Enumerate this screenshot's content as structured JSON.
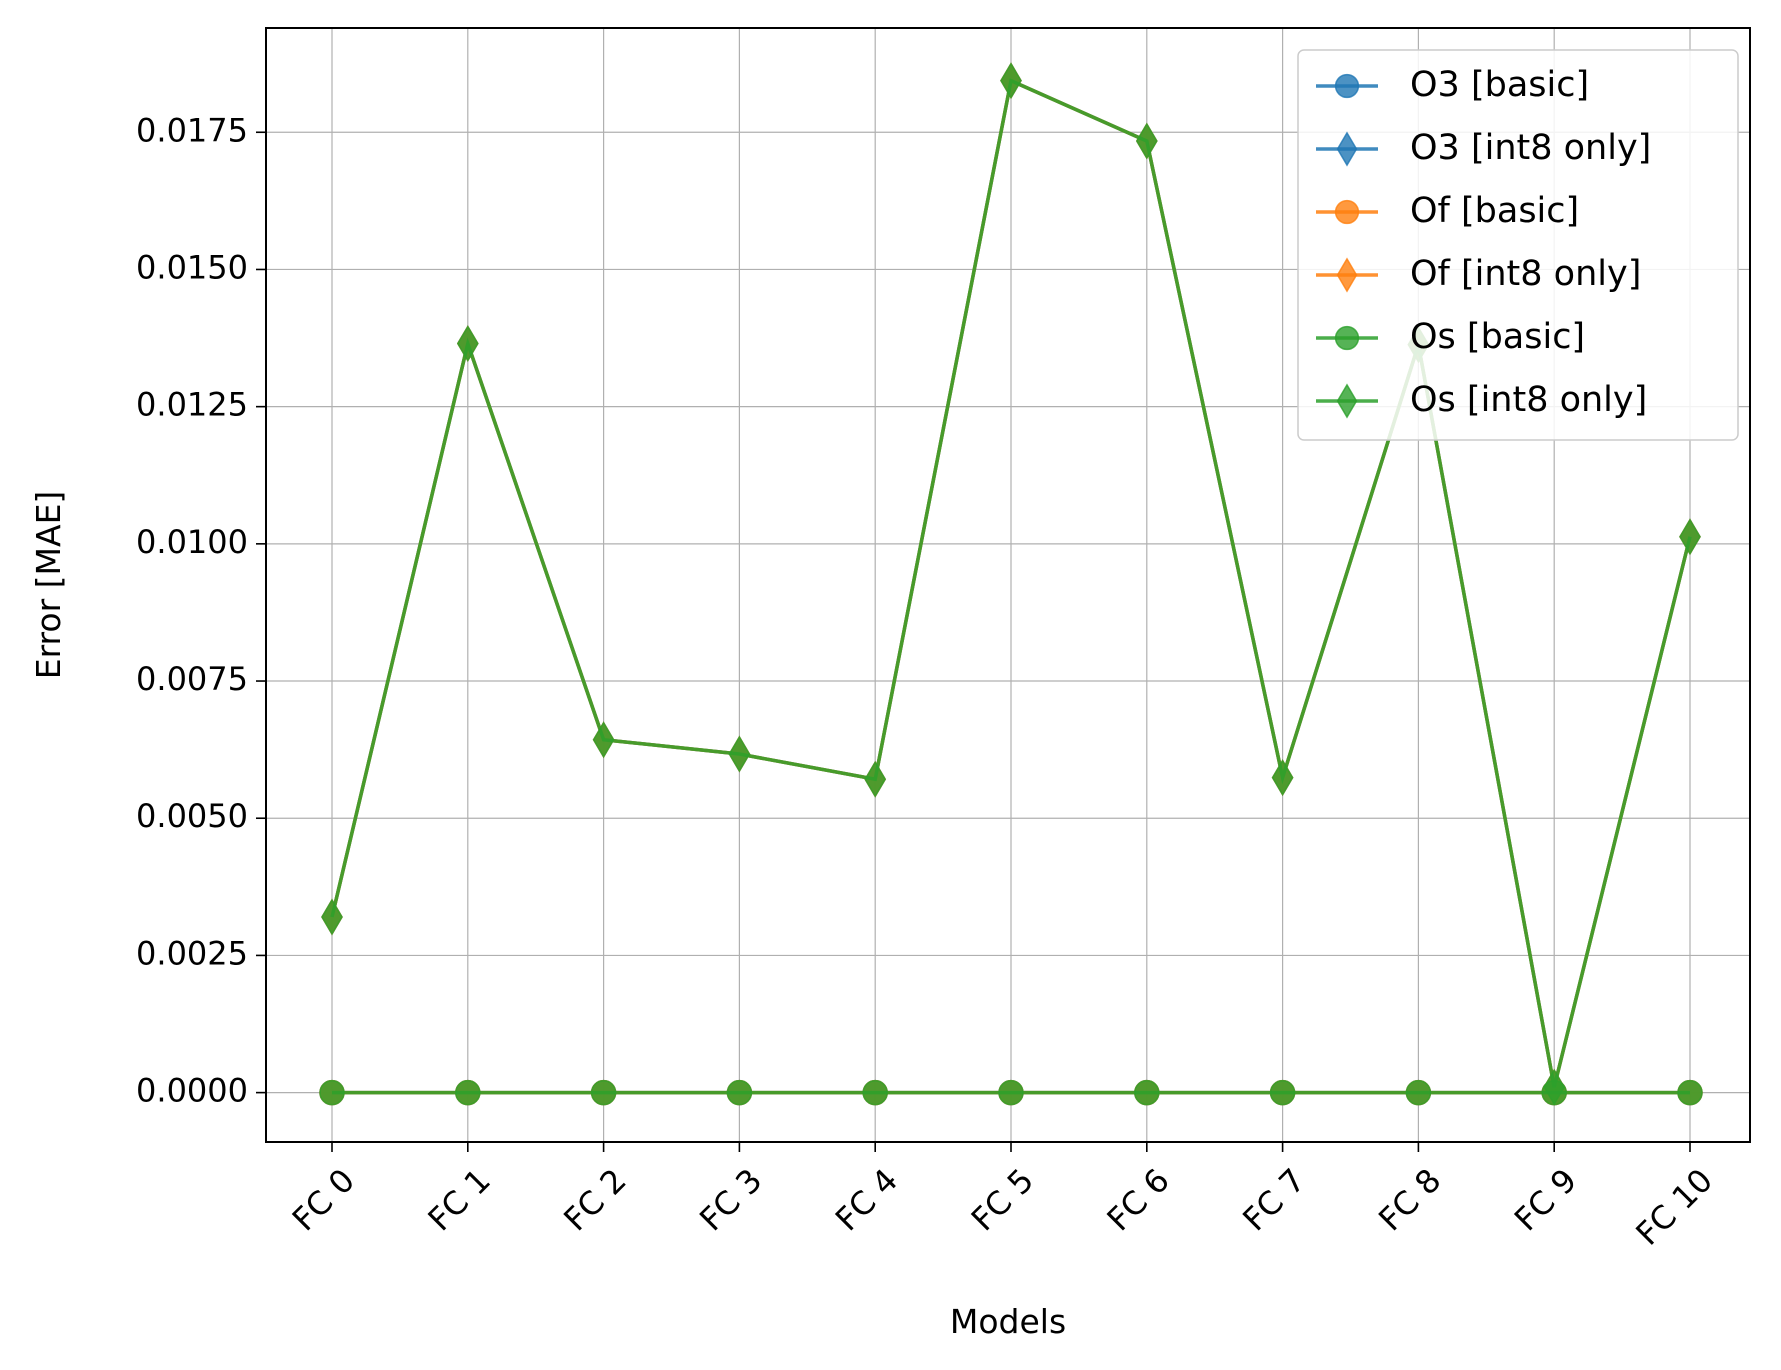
{
  "chart_data": {
    "type": "line",
    "xlabel": "Models",
    "ylabel": "Error [MAE]",
    "categories": [
      "FC 0",
      "FC 1",
      "FC 2",
      "FC 3",
      "FC 4",
      "FC 5",
      "FC 6",
      "FC 7",
      "FC 8",
      "FC 9",
      "FC 10"
    ],
    "ylim": [
      -0.0009,
      0.0194
    ],
    "yticks": [
      0.0,
      0.0025,
      0.005,
      0.0075,
      0.01,
      0.0125,
      0.015,
      0.0175
    ],
    "ytick_labels": [
      "0.0000",
      "0.0025",
      "0.0050",
      "0.0075",
      "0.0100",
      "0.0125",
      "0.0150",
      "0.0175"
    ],
    "grid": true,
    "legend_position": "top-right",
    "series": [
      {
        "name": "O3 [basic]",
        "marker": "circle",
        "color": "#1f77b4",
        "values": [
          0,
          0,
          0,
          0,
          0,
          0,
          0,
          0,
          0,
          0,
          0
        ]
      },
      {
        "name": "O3 [int8 only]",
        "marker": "diamond",
        "color": "#1f77b4",
        "values": [
          0.0032,
          0.01365,
          0.00643,
          0.00617,
          0.00571,
          0.01844,
          0.01734,
          0.00574,
          0.01363,
          0.0001,
          0.01013
        ]
      },
      {
        "name": "Of [basic]",
        "marker": "circle",
        "color": "#ff7f0e",
        "values": [
          0,
          0,
          0,
          0,
          0,
          0,
          0,
          0,
          0,
          0,
          0
        ]
      },
      {
        "name": "Of [int8 only]",
        "marker": "diamond",
        "color": "#ff7f0e",
        "values": [
          0.0032,
          0.01365,
          0.00643,
          0.00617,
          0.00571,
          0.01844,
          0.01734,
          0.00574,
          0.01363,
          0.0001,
          0.01013
        ]
      },
      {
        "name": "Os [basic]",
        "marker": "circle",
        "color": "#2ca02c",
        "values": [
          0,
          0,
          0,
          0,
          0,
          0,
          0,
          0,
          0,
          0,
          0
        ]
      },
      {
        "name": "Os [int8 only]",
        "marker": "diamond",
        "color": "#2ca02c",
        "values": [
          0.0032,
          0.01365,
          0.00643,
          0.00617,
          0.00571,
          0.01844,
          0.01734,
          0.00574,
          0.01363,
          0.0001,
          0.01013
        ]
      }
    ]
  }
}
